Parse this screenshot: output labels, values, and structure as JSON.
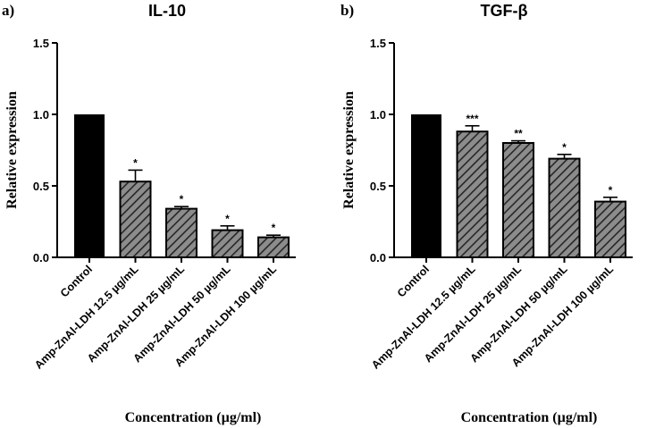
{
  "chart_data": [
    {
      "panel": "a)",
      "type": "bar",
      "title": "IL-10",
      "xlabel": "Concentration (µg/ml)",
      "ylabel": "Relative expression",
      "ylim": [
        0,
        1.5
      ],
      "yticks": [
        "0.0",
        "0.5",
        "1.0",
        "1.5"
      ],
      "categories": [
        "Control",
        "Amp-ZnAl-LDH 12.5 µg/mL",
        "Amp-ZnAl-LDH 25 µg/mL",
        "Amp-ZnAl-LDH 50 µg/mL",
        "Amp-ZnAl-LDH 100 µg/mL"
      ],
      "values": [
        1.0,
        0.53,
        0.34,
        0.19,
        0.14
      ],
      "errors": [
        0,
        0.08,
        0.015,
        0.03,
        0.015
      ],
      "significance": [
        "",
        "*",
        "*",
        "*",
        "*"
      ]
    },
    {
      "panel": "b)",
      "type": "bar",
      "title": "TGF-β",
      "xlabel": "Concentration (µg/ml)",
      "ylabel": "Relative expression",
      "ylim": [
        0,
        1.5
      ],
      "yticks": [
        "0.0",
        "0.5",
        "1.0",
        "1.5"
      ],
      "categories": [
        "Control",
        "Amp-ZnAl-LDH 12.5 µg/mL",
        "Amp-ZnAl-LDH 25 µg/mL",
        "Amp-ZnAl-LDH 50 µg/mL",
        "Amp-ZnAl-LDH 100 µg/mL"
      ],
      "values": [
        1.0,
        0.88,
        0.8,
        0.69,
        0.39
      ],
      "errors": [
        0,
        0.04,
        0.015,
        0.03,
        0.03
      ],
      "significance": [
        "",
        "***",
        "**",
        "*",
        "*"
      ]
    }
  ],
  "colors": {
    "control_bar": "#000000",
    "treatment_bar": "#808080",
    "hatch": "#2b2b2b",
    "axis": "#000000"
  }
}
